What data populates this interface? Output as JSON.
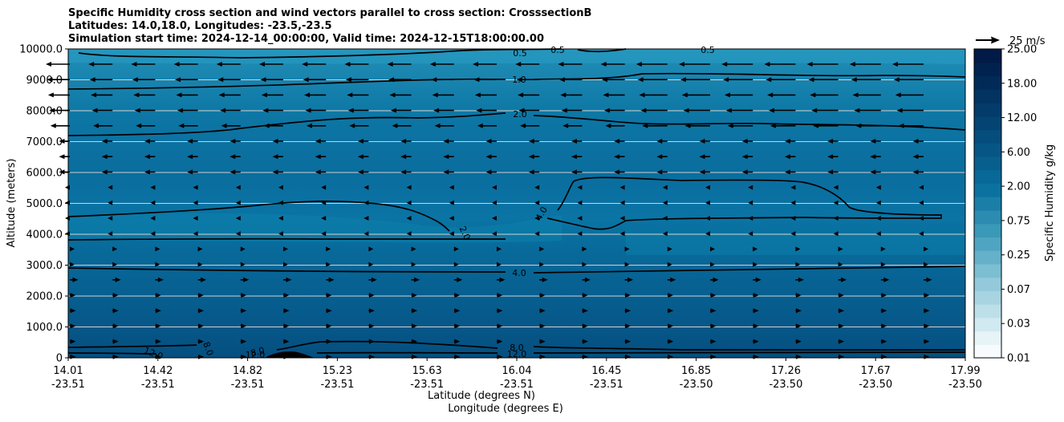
{
  "chart_data": {
    "type": "contour",
    "title_lines": [
      "Specific Humidity cross section and wind vectors parallel to cross section: CrosssectionB",
      "Latitudes: 14.0,18.0, Longitudes: -23.5,-23.5",
      "Simulation start time: 2024-12-14_00:00:00, Valid time: 2024-12-15T18:00:00.00"
    ],
    "ylabel": "Altitude (meters)",
    "xlabel_lat": "Latitude (degrees N)",
    "xlabel_lon": "Longitude (degrees E)",
    "ylim": [
      0,
      10000
    ],
    "y_ticks": [
      0,
      1000,
      2000,
      3000,
      4000,
      5000,
      6000,
      7000,
      8000,
      9000,
      10000
    ],
    "y_tick_labels": [
      "0",
      "1000.0",
      "2000.0",
      "3000.0",
      "4000.0",
      "5000.0",
      "6000.0",
      "7000.0",
      "8000.0",
      "9000.0",
      "10000.0"
    ],
    "x_ticks": [
      {
        "lat": "14.01",
        "lon": "-23.51"
      },
      {
        "lat": "14.42",
        "lon": "-23.51"
      },
      {
        "lat": "14.82",
        "lon": "-23.51"
      },
      {
        "lat": "15.23",
        "lon": "-23.51"
      },
      {
        "lat": "15.63",
        "lon": "-23.51"
      },
      {
        "lat": "16.04",
        "lon": "-23.51"
      },
      {
        "lat": "16.45",
        "lon": "-23.51"
      },
      {
        "lat": "16.85",
        "lon": "-23.50"
      },
      {
        "lat": "17.26",
        "lon": "-23.50"
      },
      {
        "lat": "17.67",
        "lon": "-23.50"
      },
      {
        "lat": "17.99",
        "lon": "-23.50"
      }
    ],
    "colorbar": {
      "label": "Specific Humidity g/kg",
      "tick_labels": [
        "0.01",
        "0.03",
        "0.07",
        "0.25",
        "0.75",
        "2.00",
        "6.00",
        "12.00",
        "18.00",
        "25.00"
      ],
      "colors": [
        "#f7fbfd",
        "#e6f3f7",
        "#d1e9f0",
        "#bddfe9",
        "#a8d4e2",
        "#93c9da",
        "#7cbed2",
        "#64b1c9",
        "#4fa5c1",
        "#3a98b8",
        "#2b8bb0",
        "#1a7ea6",
        "#0b72a0",
        "#086897",
        "#075f8e",
        "#065685",
        "#054d7c",
        "#044473",
        "#033b6a",
        "#023361",
        "#012a58",
        "#01224f",
        "#011a46"
      ]
    },
    "contour_labels": [
      "0.5",
      "0.5",
      "0.5",
      "1.0",
      "2.0",
      "2.0",
      "4.0",
      "4.0",
      "8.0",
      "8.0",
      "8.0",
      "12.0",
      "12.0",
      "12.0"
    ],
    "quiver_key_label": "25 m/s",
    "wind_direction_by_height": "westward (upper levels), weak near 4000-5000 m, eastward (lower levels)"
  }
}
